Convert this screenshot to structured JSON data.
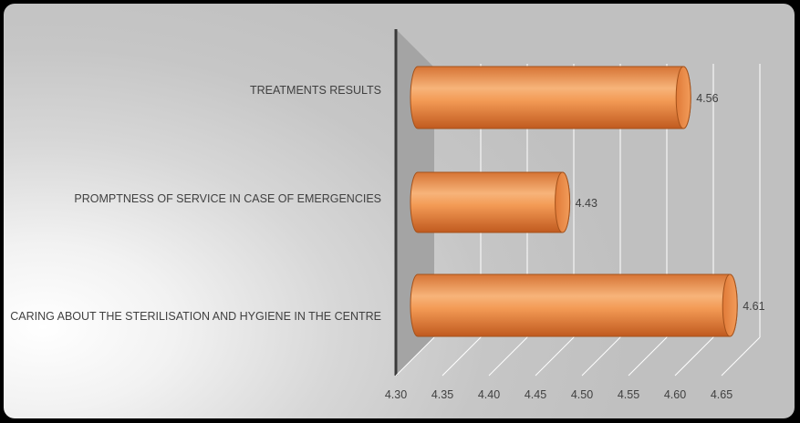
{
  "chart_data": {
    "type": "bar",
    "orientation": "horizontal",
    "style": "3d-cylinder",
    "categories": [
      "TREATMENTS RESULTS",
      "PROMPTNESS OF SERVICE IN CASE OF EMERGENCIES",
      "CARING ABOUT THE STERILISATION AND HYGIENE IN THE CENTRE"
    ],
    "values": [
      4.56,
      4.43,
      4.61
    ],
    "data_labels": [
      "4.56",
      "4.43",
      "4.61"
    ],
    "xlim": [
      4.3,
      4.65
    ],
    "x_ticks": [
      "4.30",
      "4.35",
      "4.40",
      "4.45",
      "4.50",
      "4.55",
      "4.60",
      "4.65"
    ],
    "grid": true,
    "legend": "none",
    "colors": {
      "bar_main": "#f0893e",
      "bar_light": "#f7b47a",
      "bar_dark": "#c9662a",
      "bar_edge": "#a4511a",
      "wall": "#a4a4a4",
      "axis": "#3a3a3a",
      "gridline": "#ffffff",
      "text": "#404040"
    }
  }
}
